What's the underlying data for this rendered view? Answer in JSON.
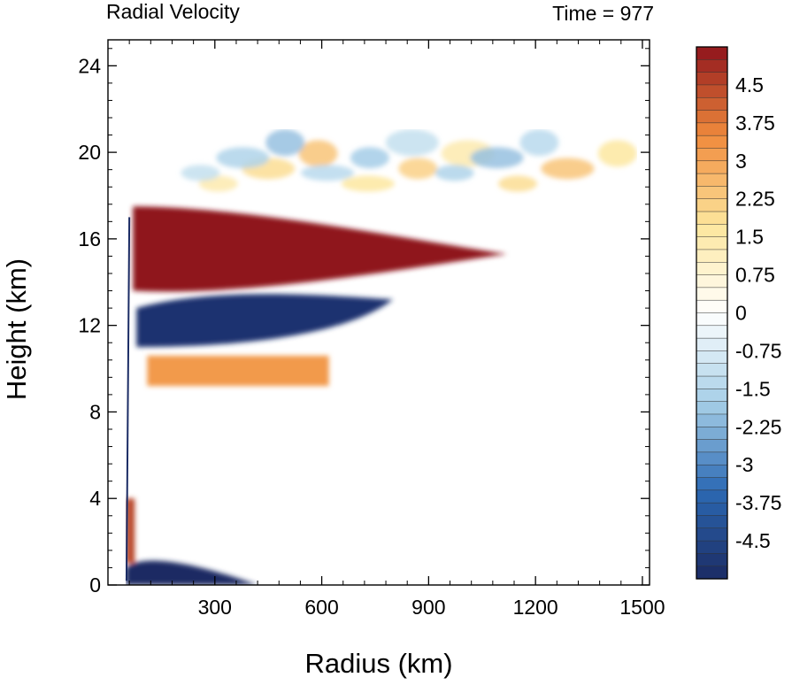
{
  "header": {
    "title_left": "Radial Velocity",
    "title_right": "Time = 977"
  },
  "chart_data": {
    "type": "heatmap",
    "title": "Radial Velocity",
    "annotation": "Time = 977",
    "xlabel": "Radius (km)",
    "ylabel": "Height (km)",
    "xlim": [
      0,
      1520
    ],
    "ylim": [
      0,
      25.2
    ],
    "x_ticks": [
      300,
      600,
      900,
      1200,
      1500
    ],
    "y_ticks": [
      0,
      4,
      8,
      12,
      16,
      20,
      24
    ],
    "colorbar": {
      "range": [
        -5.25,
        5.25
      ],
      "step": 0.25,
      "labels": [
        {
          "value": 4.5,
          "text": "4.5"
        },
        {
          "value": 3.75,
          "text": "3.75"
        },
        {
          "value": 3,
          "text": "3"
        },
        {
          "value": 2.25,
          "text": "2.25"
        },
        {
          "value": 1.5,
          "text": "1.5"
        },
        {
          "value": 0.75,
          "text": "0.75"
        },
        {
          "value": 0,
          "text": "0"
        },
        {
          "value": -0.75,
          "text": "-0.75"
        },
        {
          "value": -1.5,
          "text": "-1.5"
        },
        {
          "value": -2.25,
          "text": "-2.25"
        },
        {
          "value": -3,
          "text": "-3"
        },
        {
          "value": -3.75,
          "text": "-3.75"
        },
        {
          "value": -4.5,
          "text": "-4.5"
        }
      ],
      "colors": [
        "#1b2a63",
        "#2c6ab4",
        "#a8d0e8",
        "#ffffff",
        "#fde69c",
        "#f08a3c",
        "#8f141c"
      ]
    },
    "features": [
      {
        "name": "upper outflow jet",
        "value": 5.5,
        "radius": [
          70,
          1120
        ],
        "height": [
          13.5,
          17.5
        ]
      },
      {
        "name": "mid-level inflow",
        "value": -5.0,
        "radius": [
          80,
          800
        ],
        "height": [
          11.0,
          13.5
        ]
      },
      {
        "name": "mid-level outflow",
        "value": 3.2,
        "radius": [
          110,
          620
        ],
        "height": [
          9.2,
          10.6
        ]
      },
      {
        "name": "boundary-layer inflow",
        "value": -5.5,
        "radius": [
          50,
          420
        ],
        "height": [
          0,
          1.4
        ]
      },
      {
        "name": "low-level eyewall outflow",
        "value": 4.5,
        "radius": [
          50,
          75
        ],
        "height": [
          1.0,
          4.0
        ]
      },
      {
        "name": "upper-level positive patches",
        "value": 2.4,
        "radius": [
          240,
          1500
        ],
        "height": [
          17.5,
          21.0
        ]
      },
      {
        "name": "upper-level negative patches",
        "value": -2.0,
        "radius": [
          200,
          1270
        ],
        "height": [
          18.5,
          21.0
        ]
      }
    ]
  }
}
